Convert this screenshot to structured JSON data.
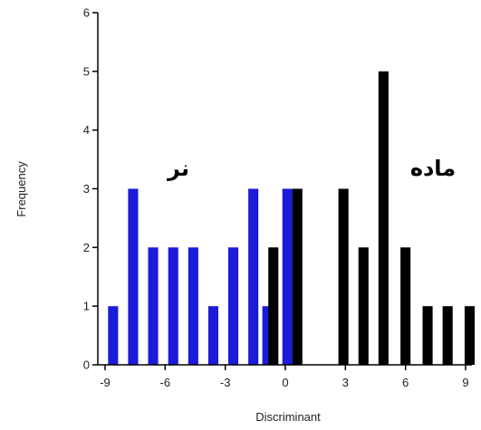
{
  "chart_data": {
    "type": "bar",
    "title": "",
    "xlabel": "Discriminant",
    "ylabel": "Frequency",
    "xlim": [
      -9,
      9
    ],
    "ylim": [
      0,
      6
    ],
    "x_ticks": [
      -9,
      -6,
      -3,
      0,
      3,
      6,
      9
    ],
    "y_ticks": [
      0,
      1,
      2,
      3,
      4,
      5,
      6
    ],
    "bar_width": 0.5,
    "series": [
      {
        "label": "نر",
        "color": "#1b1bd9",
        "points": [
          {
            "x": -8.6,
            "y": 1
          },
          {
            "x": -7.6,
            "y": 3
          },
          {
            "x": -6.6,
            "y": 2
          },
          {
            "x": -5.6,
            "y": 2
          },
          {
            "x": -4.6,
            "y": 2
          },
          {
            "x": -3.6,
            "y": 1
          },
          {
            "x": -2.6,
            "y": 2
          },
          {
            "x": -1.6,
            "y": 3
          },
          {
            "x": -0.9,
            "y": 1
          },
          {
            "x": 0.1,
            "y": 3
          }
        ]
      },
      {
        "label": "ماده",
        "color": "#000000",
        "points": [
          {
            "x": -0.6,
            "y": 2
          },
          {
            "x": 0.6,
            "y": 3
          },
          {
            "x": 2.9,
            "y": 3
          },
          {
            "x": 3.9,
            "y": 2
          },
          {
            "x": 4.9,
            "y": 5
          },
          {
            "x": 6.0,
            "y": 2
          },
          {
            "x": 7.1,
            "y": 1
          },
          {
            "x": 8.1,
            "y": 1
          },
          {
            "x": 9.2,
            "y": 1
          }
        ]
      }
    ]
  }
}
